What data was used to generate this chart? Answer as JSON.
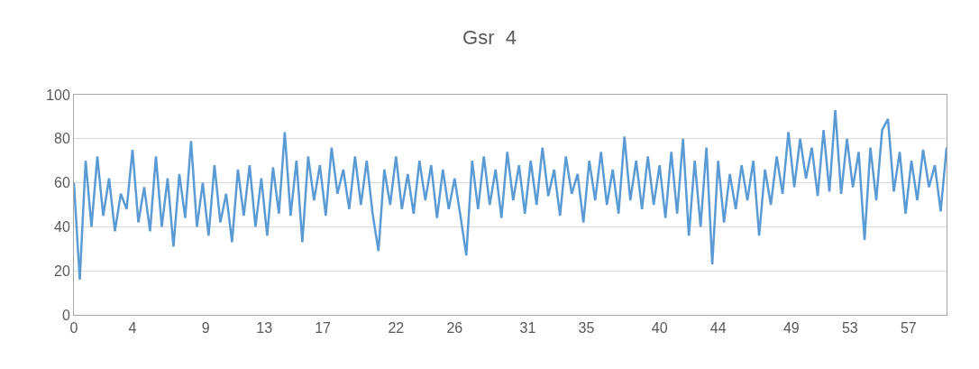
{
  "chart_data": {
    "type": "line",
    "title": "Gsr  4",
    "x": [
      0,
      0.4,
      0.8,
      1.2,
      1.6,
      2.0,
      2.4,
      2.8,
      3.2,
      3.6,
      4.0,
      4.4,
      4.8,
      5.2,
      5.6,
      6.0,
      6.4,
      6.8,
      7.2,
      7.6,
      8.0,
      8.4,
      8.8,
      9.2,
      9.6,
      10.0,
      10.4,
      10.8,
      11.2,
      11.6,
      12.0,
      12.4,
      12.8,
      13.2,
      13.6,
      14.0,
      14.4,
      14.8,
      15.2,
      15.6,
      16.0,
      16.4,
      16.8,
      17.2,
      17.6,
      18.0,
      18.4,
      18.8,
      19.2,
      19.6,
      20.0,
      20.4,
      20.8,
      21.2,
      21.6,
      22.0,
      22.4,
      22.8,
      23.2,
      23.6,
      24.0,
      24.4,
      24.8,
      25.2,
      25.6,
      26.0,
      26.4,
      26.8,
      27.2,
      27.6,
      28.0,
      28.4,
      28.8,
      29.2,
      29.6,
      30.0,
      30.4,
      30.8,
      31.2,
      31.6,
      32.0,
      32.4,
      32.8,
      33.2,
      33.6,
      34.0,
      34.4,
      34.8,
      35.2,
      35.6,
      36.0,
      36.4,
      36.8,
      37.2,
      37.6,
      38.0,
      38.4,
      38.8,
      39.2,
      39.6,
      40.0,
      40.4,
      40.8,
      41.2,
      41.6,
      42.0,
      42.4,
      42.8,
      43.2,
      43.6,
      44.0,
      44.4,
      44.8,
      45.2,
      45.6,
      46.0,
      46.4,
      46.8,
      47.2,
      47.6,
      48.0,
      48.4,
      48.8,
      49.2,
      49.6,
      50.0,
      50.4,
      50.8,
      51.2,
      51.6,
      52.0,
      52.4,
      52.8,
      53.2,
      53.6,
      54.0,
      54.4,
      54.8,
      55.2,
      55.6,
      56.0,
      56.4,
      56.8,
      57.2,
      57.6,
      58.0,
      58.4,
      58.8,
      59.2,
      59.6
    ],
    "series": [
      {
        "color": "#5b9bd5",
        "values": [
          60,
          16,
          70,
          40,
          72,
          45,
          62,
          38,
          55,
          48,
          75,
          42,
          58,
          38,
          72,
          40,
          62,
          31,
          64,
          44,
          79,
          40,
          60,
          36,
          68,
          42,
          55,
          33,
          66,
          45,
          68,
          40,
          62,
          36,
          67,
          46,
          83,
          45,
          70,
          33,
          72,
          52,
          68,
          45,
          76,
          55,
          66,
          48,
          72,
          50,
          70,
          46,
          29,
          66,
          50,
          72,
          48,
          64,
          46,
          70,
          52,
          68,
          44,
          66,
          48,
          62,
          45,
          27,
          70,
          48,
          72,
          50,
          66,
          44,
          74,
          52,
          68,
          46,
          70,
          50,
          76,
          54,
          66,
          45,
          72,
          55,
          64,
          42,
          70,
          52,
          74,
          50,
          66,
          46,
          81,
          52,
          70,
          48,
          72,
          50,
          68,
          44,
          74,
          46,
          80,
          36,
          70,
          40,
          76,
          23,
          70,
          42,
          64,
          48,
          68,
          52,
          70,
          36,
          66,
          50,
          72,
          55,
          83,
          58,
          80,
          62,
          76,
          54,
          84,
          56,
          93,
          55,
          80,
          58,
          74,
          34,
          76,
          52,
          84,
          89,
          56,
          74,
          46,
          70,
          52,
          75,
          58,
          68,
          47,
          76
        ]
      }
    ],
    "xlim": [
      0,
      59.6
    ],
    "xticks": [
      0,
      4,
      9,
      13,
      17,
      22,
      26,
      31,
      35,
      40,
      44,
      49,
      53,
      57
    ],
    "ylim": [
      0,
      100
    ],
    "yticks": [
      0,
      20,
      40,
      60,
      80,
      100
    ],
    "grid": "y",
    "marker": "none",
    "line_style": "solid"
  }
}
